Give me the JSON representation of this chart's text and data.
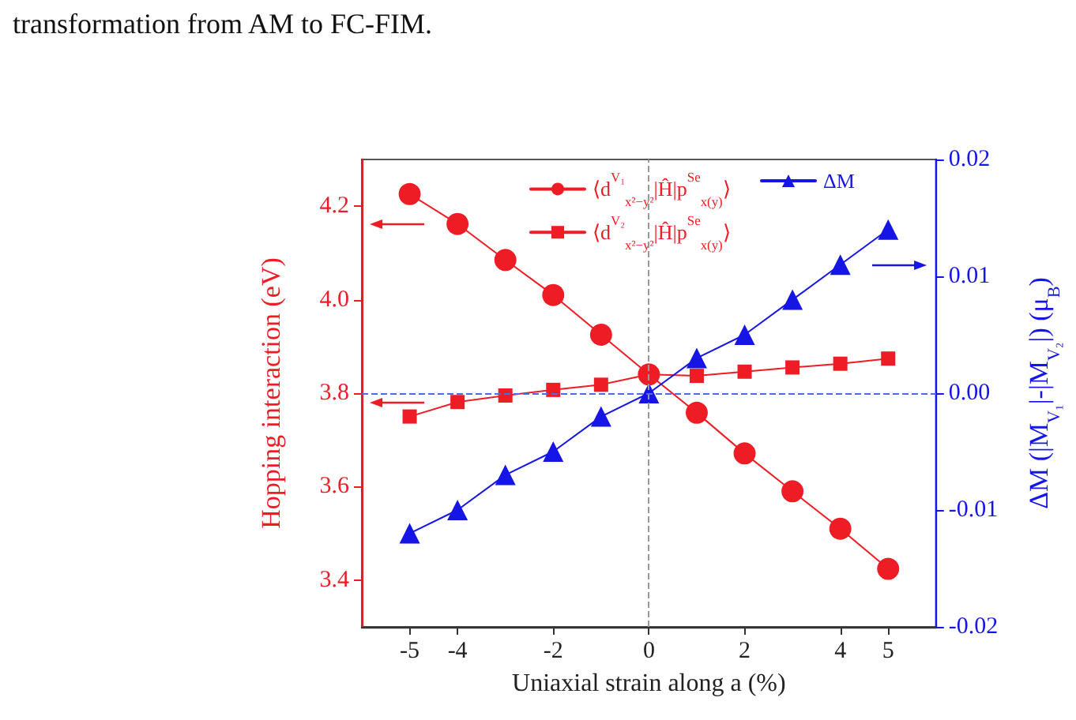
{
  "chart_data": {
    "type": "line",
    "annotations": [
      "transformation from AM to FC-FIM."
    ],
    "xlabel": "Uniaxial strain along a (%)",
    "ylabel": "Hopping interaction (eV)",
    "y2label": "ΔM (|M$_{V₁}$|-|M$_{V₂}$|) (μ$_{B}$)",
    "x": [
      -5,
      -4,
      -3,
      -2,
      -1,
      0,
      1,
      2,
      3,
      4,
      5
    ],
    "xlim": [
      -6,
      6
    ],
    "xticks": [
      -5,
      -4,
      -2,
      0,
      2,
      4,
      5
    ],
    "ylim": [
      3.3,
      4.3
    ],
    "yticks": [
      3.4,
      3.6,
      3.8,
      {
        "value": 4,
        "label": "4.0"
      },
      4.2
    ],
    "y2lim": [
      -0.02,
      0.02
    ],
    "y2ticks": [
      -0.02,
      -0.01,
      {
        "value": 0,
        "label": "0.00"
      },
      0.01,
      0.02
    ],
    "series": [
      {
        "name": "⟨d$^{V₁}$$_{x²−y²}$|Ĥ|p$^{Se}$$_{x(y)}$⟩",
        "color": "#ee1c24",
        "marker": "circle",
        "values": [
          4.226,
          4.162,
          4.085,
          4.01,
          3.925,
          3.84,
          3.758,
          3.671,
          3.59,
          3.51,
          3.424
        ]
      },
      {
        "name": "⟨d$^{V₂}$$_{x²−y²}$|Ĥ|p$^{Se}$$_{x(y)}$⟩",
        "color": "#ee1c24",
        "marker": "square",
        "values": [
          3.75,
          3.781,
          3.795,
          3.807,
          3.818,
          3.84,
          3.837,
          3.846,
          3.855,
          3.863,
          3.874
        ]
      },
      {
        "name": "ΔM",
        "color": "#1515e6",
        "marker": "triangle",
        "axis": "y2",
        "values": [
          -0.012,
          -0.01,
          -0.007,
          -0.005,
          -0.002,
          0,
          0.003,
          0.005,
          0.008,
          0.011,
          0.014
        ]
      }
    ],
    "ref_lines": [
      {
        "axis": "x",
        "value": 0,
        "color": "#999999",
        "line_style": "dashed"
      },
      {
        "axis": "y2",
        "value": 0,
        "color": "#4a6bea",
        "line_style": "dashed"
      }
    ],
    "legend": "top"
  }
}
